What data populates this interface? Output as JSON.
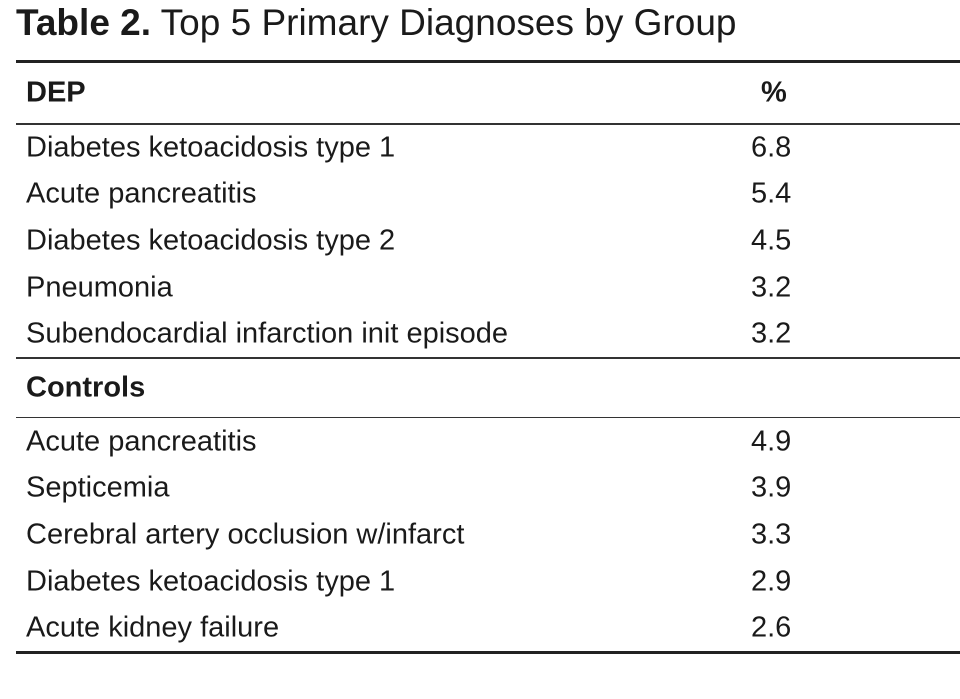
{
  "caption": {
    "label": "Table 2.",
    "title": "Top 5 Primary Diagnoses by Group"
  },
  "table": {
    "col_header_value": "%",
    "groups": [
      {
        "name": "DEP",
        "rows": [
          {
            "diagnosis": "Diabetes ketoacidosis type 1",
            "pct": "6.8"
          },
          {
            "diagnosis": "Acute pancreatitis",
            "pct": "5.4"
          },
          {
            "diagnosis": "Diabetes ketoacidosis type 2",
            "pct": "4.5"
          },
          {
            "diagnosis": "Pneumonia",
            "pct": "3.2"
          },
          {
            "diagnosis": "Subendocardial infarction init episode",
            "pct": "3.2"
          }
        ]
      },
      {
        "name": "Controls",
        "rows": [
          {
            "diagnosis": "Acute pancreatitis",
            "pct": "4.9"
          },
          {
            "diagnosis": "Septicemia",
            "pct": "3.9"
          },
          {
            "diagnosis": "Cerebral artery occlusion w/infarct",
            "pct": "3.3"
          },
          {
            "diagnosis": "Diabetes ketoacidosis type 1",
            "pct": "2.9"
          },
          {
            "diagnosis": "Acute kidney failure",
            "pct": "2.6"
          }
        ]
      }
    ]
  }
}
